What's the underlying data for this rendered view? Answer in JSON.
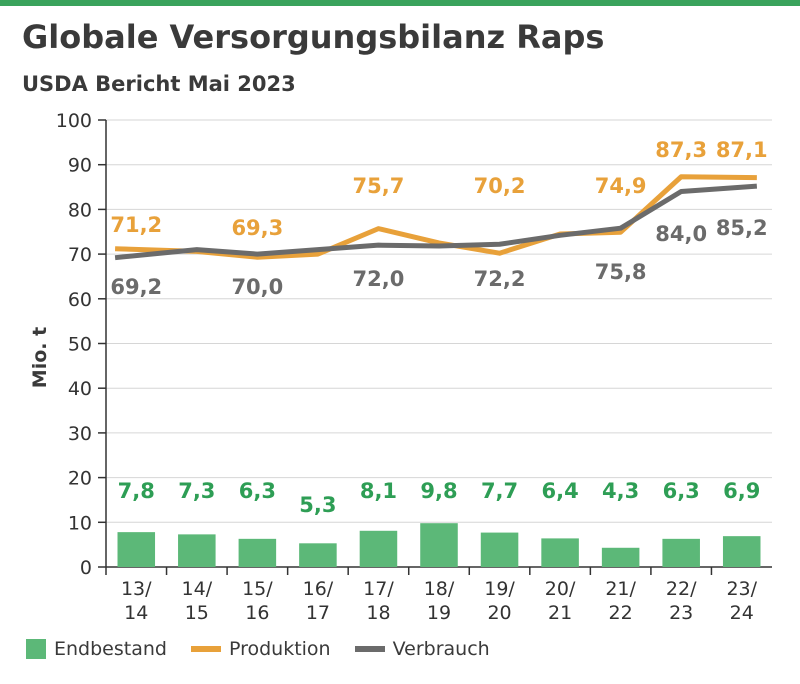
{
  "header": {
    "title": "Globale Versorgungsbilanz Raps",
    "subtitle": "USDA Bericht Mai 2023"
  },
  "colors": {
    "topbar": "#3aa35c",
    "endbestand": "#5cb878",
    "endbestand_label": "#2e9e55",
    "produktion": "#e8a13a",
    "verbrauch": "#6b6b6b",
    "grid": "#d6d6d6",
    "axis": "#333333"
  },
  "chart_data": {
    "type": "bar+line",
    "ylabel": "Mio. t",
    "ylim": [
      0,
      100
    ],
    "yticks": [
      "0",
      "10",
      "20",
      "30",
      "40",
      "50",
      "60",
      "70",
      "80",
      "90",
      "100"
    ],
    "categories": [
      "13/\n14",
      "14/\n15",
      "15/\n16",
      "16/\n17",
      "17/\n18",
      "18/\n19",
      "19/\n20",
      "20/\n21",
      "21/\n22",
      "22/\n23",
      "23/\n24"
    ],
    "series": [
      {
        "name": "Endbestand",
        "kind": "bar",
        "values": [
          7.8,
          7.3,
          6.3,
          5.3,
          8.1,
          9.8,
          7.7,
          6.4,
          4.3,
          6.3,
          6.9
        ],
        "labels": [
          "7,8",
          "7,3",
          "6,3",
          "5,3",
          "8,1",
          "9,8",
          "7,7",
          "6,4",
          "4,3",
          "6,3",
          "6,9"
        ]
      },
      {
        "name": "Produktion",
        "kind": "line",
        "values": [
          71.2,
          70.6,
          69.3,
          70.0,
          75.7,
          72.5,
          70.2,
          74.5,
          74.9,
          87.3,
          87.1
        ],
        "labels": [
          "71,2",
          "",
          "69,3",
          "",
          "75,7",
          "",
          "70,2",
          "",
          "74,9",
          "87,3",
          "87,1"
        ]
      },
      {
        "name": "Verbrauch",
        "kind": "line",
        "values": [
          69.2,
          71.0,
          70.0,
          71.0,
          72.0,
          71.8,
          72.2,
          74.2,
          75.8,
          84.0,
          85.2
        ],
        "labels": [
          "69,2",
          "",
          "70,0",
          "",
          "72,0",
          "",
          "72,2",
          "",
          "75,8",
          "84,0",
          "85,2"
        ]
      }
    ],
    "grid": true,
    "legend_position": "bottom-left"
  }
}
